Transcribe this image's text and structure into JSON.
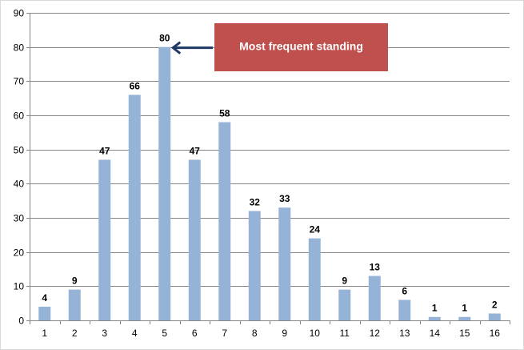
{
  "chart_data": {
    "type": "bar",
    "categories": [
      "1",
      "2",
      "3",
      "4",
      "5",
      "6",
      "7",
      "8",
      "9",
      "10",
      "11",
      "12",
      "13",
      "14",
      "15",
      "16"
    ],
    "values": [
      4,
      9,
      47,
      66,
      80,
      47,
      58,
      32,
      33,
      24,
      9,
      13,
      6,
      1,
      1,
      2
    ],
    "title": "",
    "xlabel": "",
    "ylabel": "",
    "ylim": [
      0,
      90
    ],
    "yticks": [
      0,
      10,
      20,
      30,
      40,
      50,
      60,
      70,
      80,
      90
    ],
    "grid": true,
    "data_labels": true,
    "bar_color": "#95B3D7",
    "annotation": {
      "text": "Most frequent standing",
      "target_category": "5",
      "box_color": "#C0504D",
      "arrow_color": "#1F3864"
    }
  }
}
